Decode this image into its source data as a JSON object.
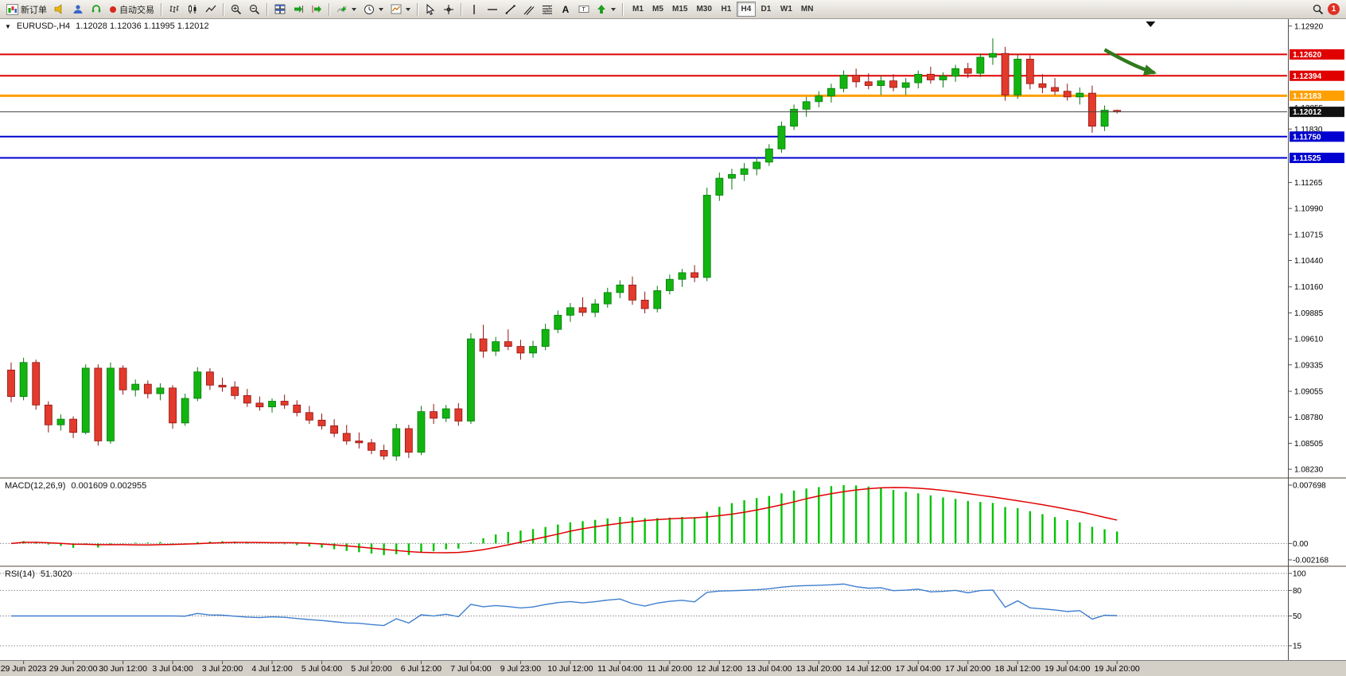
{
  "toolbar": {
    "new_order_label": "新订单",
    "autotrading_label": "自动交易",
    "timeframes": [
      "M1",
      "M5",
      "M15",
      "M30",
      "H1",
      "H4",
      "D1",
      "W1",
      "MN"
    ],
    "active_timeframe": "H4",
    "notification_count": "1"
  },
  "chart": {
    "title": "EURUSD-,H4",
    "ohlc": "1.12028 1.12036 1.11995 1.12012",
    "macd_label": "MACD(12,26,9)",
    "macd_values": "0.001609 0.002955",
    "rsi_label": "RSI(14)",
    "rsi_value": "51.3020"
  },
  "chart_data": {
    "type": "candlestick",
    "symbol": "EURUSD-",
    "timeframe": "H4",
    "up_color": "#12b50f",
    "down_color": "#e23a2c",
    "price_axis": {
      "min": 1.0818,
      "max": 1.1296,
      "ticks": [
        1.1292,
        1.12055,
        1.1183,
        1.11265,
        1.1099,
        1.10715,
        1.1044,
        1.1016,
        1.09885,
        1.0961,
        1.09335,
        1.09055,
        1.0878,
        1.08505,
        1.0823
      ]
    },
    "hlines": [
      {
        "price": 1.1262,
        "color": "#e00000",
        "width": 2,
        "label": "1.12620"
      },
      {
        "price": 1.12394,
        "color": "#e00000",
        "width": 2,
        "label": "1.12394"
      },
      {
        "price": 1.12183,
        "color": "#ffa000",
        "width": 3,
        "label": "1.12183"
      },
      {
        "price": 1.1175,
        "color": "#0000d0",
        "width": 2,
        "label": "1.11750"
      },
      {
        "price": 1.11525,
        "color": "#0000d0",
        "width": 2,
        "label": "1.11525"
      }
    ],
    "current_price": {
      "price": 1.12012,
      "label": "1.12012"
    },
    "candles": [
      [
        1.0928,
        1.0936,
        1.0894,
        1.09
      ],
      [
        1.09,
        1.0941,
        1.0896,
        1.0936
      ],
      [
        1.0936,
        1.0939,
        1.0886,
        1.0891
      ],
      [
        1.0891,
        1.0895,
        1.0862,
        1.087
      ],
      [
        1.087,
        1.0881,
        1.0864,
        1.0876
      ],
      [
        1.0876,
        1.0879,
        1.0856,
        1.0862
      ],
      [
        1.0862,
        1.0934,
        1.086,
        1.093
      ],
      [
        1.093,
        1.0934,
        1.0848,
        1.0853
      ],
      [
        1.0853,
        1.0936,
        1.085,
        1.093
      ],
      [
        1.093,
        1.0933,
        1.0902,
        1.0907
      ],
      [
        1.0907,
        1.0918,
        1.09,
        1.0913
      ],
      [
        1.0913,
        1.0917,
        1.0898,
        1.0903
      ],
      [
        1.0903,
        1.0914,
        1.0896,
        1.0909
      ],
      [
        1.0909,
        1.0912,
        1.0866,
        1.0872
      ],
      [
        1.0872,
        1.0903,
        1.0869,
        1.0898
      ],
      [
        1.0898,
        1.0931,
        1.0895,
        1.0926
      ],
      [
        1.0926,
        1.093,
        1.0907,
        1.0912
      ],
      [
        1.0912,
        1.092,
        1.0905,
        1.091
      ],
      [
        1.091,
        1.0916,
        1.0897,
        1.0901
      ],
      [
        1.0901,
        1.0908,
        1.0889,
        1.0893
      ],
      [
        1.0893,
        1.09,
        1.0885,
        1.0889
      ],
      [
        1.0889,
        1.0898,
        1.0883,
        1.0895
      ],
      [
        1.0895,
        1.0902,
        1.0887,
        1.0891
      ],
      [
        1.0891,
        1.0896,
        1.0879,
        1.0883
      ],
      [
        1.0883,
        1.089,
        1.0871,
        1.0875
      ],
      [
        1.0875,
        1.0882,
        1.0865,
        1.0869
      ],
      [
        1.0869,
        1.0876,
        1.0857,
        1.0861
      ],
      [
        1.0861,
        1.087,
        1.0849,
        1.0853
      ],
      [
        1.0853,
        1.0862,
        1.0845,
        1.0851
      ],
      [
        1.0851,
        1.0855,
        1.0839,
        1.0843
      ],
      [
        1.0843,
        1.0849,
        1.0833,
        1.0837
      ],
      [
        1.0837,
        1.0871,
        1.0832,
        1.0866
      ],
      [
        1.0866,
        1.087,
        1.0835,
        1.0841
      ],
      [
        1.0841,
        1.089,
        1.0838,
        1.0884
      ],
      [
        1.0884,
        1.0892,
        1.0871,
        1.0877
      ],
      [
        1.0877,
        1.0891,
        1.0873,
        1.0887
      ],
      [
        1.0887,
        1.0893,
        1.0869,
        1.0874
      ],
      [
        1.0874,
        1.0967,
        1.0871,
        1.0961
      ],
      [
        1.0961,
        1.0976,
        1.0941,
        1.0948
      ],
      [
        1.0948,
        1.0963,
        1.0943,
        1.0958
      ],
      [
        1.0958,
        1.0971,
        1.0949,
        1.0953
      ],
      [
        1.0953,
        1.096,
        1.0939,
        1.0946
      ],
      [
        1.0946,
        1.0959,
        1.0941,
        1.0953
      ],
      [
        1.0953,
        1.0977,
        1.0949,
        1.0971
      ],
      [
        1.0971,
        1.0991,
        1.0967,
        1.0986
      ],
      [
        1.0986,
        1.0999,
        1.0979,
        1.0994
      ],
      [
        1.0994,
        1.1005,
        1.0985,
        1.0989
      ],
      [
        1.0989,
        1.1003,
        1.0984,
        1.0998
      ],
      [
        1.0998,
        1.1015,
        1.0994,
        1.101
      ],
      [
        1.101,
        1.1023,
        1.1004,
        1.1018
      ],
      [
        1.1018,
        1.1027,
        1.0997,
        1.1002
      ],
      [
        1.1002,
        1.1011,
        1.0988,
        1.0993
      ],
      [
        1.0993,
        1.1017,
        1.0989,
        1.1012
      ],
      [
        1.1012,
        1.1029,
        1.1008,
        1.1024
      ],
      [
        1.1024,
        1.1035,
        1.1016,
        1.1031
      ],
      [
        1.1031,
        1.1039,
        1.1021,
        1.1026
      ],
      [
        1.1026,
        1.1121,
        1.1022,
        1.1113
      ],
      [
        1.1113,
        1.1137,
        1.1107,
        1.1131
      ],
      [
        1.1131,
        1.1141,
        1.1119,
        1.1135
      ],
      [
        1.1135,
        1.1147,
        1.1128,
        1.1141
      ],
      [
        1.1141,
        1.1153,
        1.1134,
        1.1148
      ],
      [
        1.1148,
        1.1167,
        1.1144,
        1.1162
      ],
      [
        1.1162,
        1.1191,
        1.1158,
        1.1186
      ],
      [
        1.1186,
        1.1209,
        1.1182,
        1.1204
      ],
      [
        1.1204,
        1.1217,
        1.1196,
        1.1212
      ],
      [
        1.1212,
        1.1223,
        1.1206,
        1.1218
      ],
      [
        1.1218,
        1.1231,
        1.1211,
        1.1226
      ],
      [
        1.1226,
        1.1245,
        1.1222,
        1.124
      ],
      [
        1.124,
        1.1247,
        1.1227,
        1.1233
      ],
      [
        1.1233,
        1.1242,
        1.1225,
        1.1229
      ],
      [
        1.1229,
        1.1239,
        1.1219,
        1.1234
      ],
      [
        1.1234,
        1.1241,
        1.1223,
        1.1227
      ],
      [
        1.1227,
        1.1237,
        1.1219,
        1.1232
      ],
      [
        1.1232,
        1.1245,
        1.1226,
        1.1241
      ],
      [
        1.1241,
        1.1249,
        1.1231,
        1.1235
      ],
      [
        1.1235,
        1.1243,
        1.1227,
        1.1239
      ],
      [
        1.1239,
        1.1251,
        1.1233,
        1.1247
      ],
      [
        1.1247,
        1.1253,
        1.1237,
        1.1242
      ],
      [
        1.1242,
        1.1263,
        1.1238,
        1.1259
      ],
      [
        1.1259,
        1.1279,
        1.1251,
        1.1263
      ],
      [
        1.1263,
        1.127,
        1.1213,
        1.1219
      ],
      [
        1.1219,
        1.1262,
        1.1215,
        1.1257
      ],
      [
        1.1257,
        1.1261,
        1.1225,
        1.1231
      ],
      [
        1.1231,
        1.1241,
        1.1221,
        1.1227
      ],
      [
        1.1227,
        1.1237,
        1.1219,
        1.1223
      ],
      [
        1.1223,
        1.1231,
        1.1213,
        1.1217
      ],
      [
        1.1217,
        1.1227,
        1.1209,
        1.1221
      ],
      [
        1.1221,
        1.1229,
        1.1179,
        1.1186
      ],
      [
        1.1186,
        1.1208,
        1.1181,
        1.1203
      ],
      [
        1.12028,
        1.12036,
        1.11995,
        1.12012
      ]
    ],
    "time_labels": [
      {
        "bar": 1,
        "text": "29 Jun 2023"
      },
      {
        "bar": 5,
        "text": "29 Jun 20:00"
      },
      {
        "bar": 9,
        "text": "30 Jun 12:00"
      },
      {
        "bar": 13,
        "text": "3 Jul 04:00"
      },
      {
        "bar": 17,
        "text": "3 Jul 20:00"
      },
      {
        "bar": 21,
        "text": "4 Jul 12:00"
      },
      {
        "bar": 25,
        "text": "5 Jul 04:00"
      },
      {
        "bar": 29,
        "text": "5 Jul 20:00"
      },
      {
        "bar": 33,
        "text": "6 Jul 12:00"
      },
      {
        "bar": 37,
        "text": "7 Jul 04:00"
      },
      {
        "bar": 41,
        "text": "9 Jul 23:00"
      },
      {
        "bar": 45,
        "text": "10 Jul 12:00"
      },
      {
        "bar": 49,
        "text": "11 Jul 04:00"
      },
      {
        "bar": 53,
        "text": "11 Jul 20:00"
      },
      {
        "bar": 57,
        "text": "12 Jul 12:00"
      },
      {
        "bar": 61,
        "text": "13 Jul 04:00"
      },
      {
        "bar": 65,
        "text": "13 Jul 20:00"
      },
      {
        "bar": 69,
        "text": "14 Jul 12:00"
      },
      {
        "bar": 73,
        "text": "17 Jul 04:00"
      },
      {
        "bar": 77,
        "text": "17 Jul 20:00"
      },
      {
        "bar": 81,
        "text": "18 Jul 12:00"
      },
      {
        "bar": 85,
        "text": "19 Jul 04:00"
      },
      {
        "bar": 89,
        "text": "19 Jul 20:00"
      }
    ],
    "macd": {
      "label": "MACD(12,26,9)",
      "values_text": "0.001609 0.002955",
      "axis": [
        "0.007698",
        "0.00",
        "-0.002168"
      ],
      "max": 0.007698,
      "min": -0.002168,
      "bar_color": "#00c400",
      "signal_color": "#e00000"
    },
    "rsi": {
      "label": "RSI(14)",
      "value_text": "51.3020",
      "levels": [
        100,
        80,
        50,
        15
      ],
      "axis_labels": [
        "100",
        "80",
        "50",
        "15"
      ],
      "max": 100,
      "min": 0,
      "line_color": "#3f7fcf"
    },
    "annotations": {
      "arrow": {
        "x1_bar": 88,
        "p1": 1.1267,
        "x2_bar": 92.4,
        "p2": 1.124,
        "color": "#2f7a1d"
      },
      "top_marker_bar": 91.7
    }
  }
}
